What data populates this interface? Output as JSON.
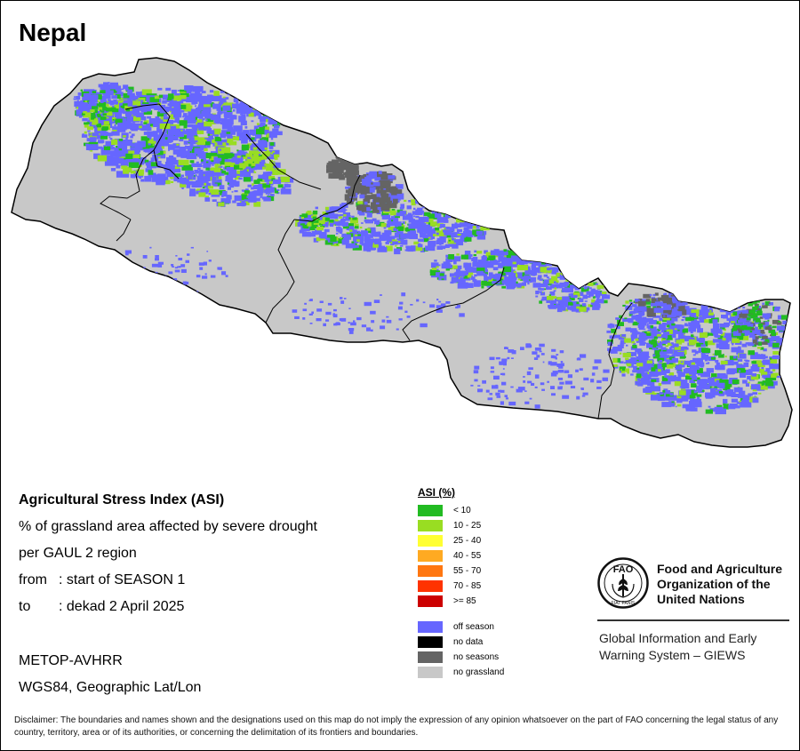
{
  "map": {
    "country": "Nepal",
    "colors": {
      "country_fill": "#c8c8c8",
      "border": "#000000",
      "off_season": "#6666ff",
      "no_seasons": "#646464",
      "low_stress": "#22bb22",
      "mild_stress": "#99dd22"
    }
  },
  "info": {
    "title": "Agricultural Stress Index (ASI)",
    "line1": "% of grassland area affected by severe drought",
    "line2": "per GAUL 2 region",
    "from_label": "from",
    "from_value": ": start of SEASON 1",
    "to_label": "to",
    "to_value": ": dekad 2 April 2025",
    "sensor": "METOP-AVHRR",
    "projection": "WGS84, Geographic Lat/Lon"
  },
  "legend": {
    "title": "ASI (%)",
    "classes": [
      {
        "label": "< 10",
        "color": "#22bb22"
      },
      {
        "label": "10 - 25",
        "color": "#99dd22"
      },
      {
        "label": "25 - 40",
        "color": "#ffff33"
      },
      {
        "label": "40 - 55",
        "color": "#ffaa22"
      },
      {
        "label": "55 - 70",
        "color": "#ff7711"
      },
      {
        "label": "70 - 85",
        "color": "#ff3300"
      },
      {
        "label": ">= 85",
        "color": "#cc0000"
      }
    ],
    "other": [
      {
        "label": "off season",
        "color": "#6666ff"
      },
      {
        "label": "no data",
        "color": "#000000"
      },
      {
        "label": "no seasons",
        "color": "#646464"
      },
      {
        "label": "no grassland",
        "color": "#c8c8c8"
      }
    ]
  },
  "fao": {
    "logo_text": "FAO",
    "logo_motto": "FIAT PANIS",
    "name_line1": "Food and Agriculture",
    "name_line2": "Organization of the",
    "name_line3": "United Nations",
    "giews_line1": "Global Information and Early",
    "giews_line2": "Warning System – GIEWS"
  },
  "disclaimer": "Disclaimer: The boundaries and names shown and the designations used on this map do not imply the expression of any opinion whatsoever on the part of FAO concerning the legal status of any country, territory, area or of its authorities, or concerning the delimitation of its frontiers and boundaries."
}
